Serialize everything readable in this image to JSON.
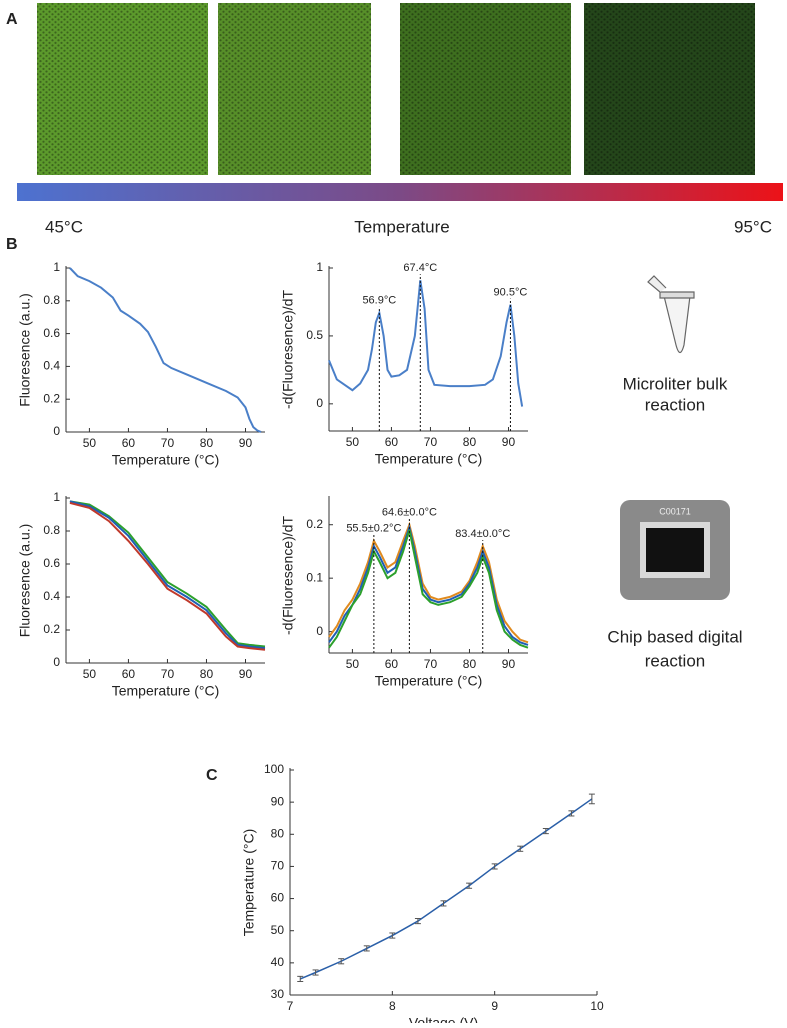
{
  "panel_labels": [
    "A",
    "B",
    "C"
  ],
  "panel_a": {
    "scale_min": "45°C",
    "scale_label": "Temperature",
    "scale_max": "95°C"
  },
  "side_captions": {
    "bulk": [
      "Microliter bulk",
      "reaction"
    ],
    "chip": [
      "Chip based digital",
      "reaction"
    ],
    "chip_label": "C00171"
  },
  "chart_data": [
    {
      "type": "line",
      "xlabel": "Temperature (°C)",
      "ylabel": "Fluoresence (a.u.)",
      "xlim": [
        44,
        95
      ],
      "ylim": [
        0,
        1
      ],
      "xticks": [
        50,
        60,
        70,
        80,
        90
      ],
      "yticks": [
        0,
        0.2,
        0.4,
        0.6,
        0.8,
        1
      ],
      "x": [
        45,
        47,
        50,
        53,
        56,
        58,
        60,
        63,
        65,
        67,
        69,
        71,
        75,
        80,
        85,
        88,
        90,
        91,
        92,
        93,
        94
      ],
      "series": [
        {
          "color": "#4a7fc8",
          "values": [
            1.0,
            0.95,
            0.92,
            0.88,
            0.82,
            0.74,
            0.71,
            0.66,
            0.61,
            0.52,
            0.42,
            0.39,
            0.35,
            0.3,
            0.25,
            0.21,
            0.15,
            0.08,
            0.03,
            0.01,
            0.0
          ]
        }
      ]
    },
    {
      "type": "line",
      "xlabel": "Temperature (°C)",
      "ylabel": "-d(Fluoresence)/dT",
      "xlim": [
        44,
        95
      ],
      "ylim": [
        -0.2,
        1
      ],
      "xticks": [
        50,
        60,
        70,
        80,
        90
      ],
      "yticks": [
        0,
        0.5,
        1
      ],
      "x": [
        44,
        46,
        48,
        50,
        52,
        54,
        55,
        56,
        56.9,
        58,
        59,
        60,
        62,
        64,
        66,
        67.4,
        68.5,
        69.5,
        71,
        75,
        80,
        84,
        86,
        88,
        89.5,
        90.5,
        91.5,
        92.5,
        93.5
      ],
      "series": [
        {
          "color": "#4a7fc8",
          "values": [
            0.32,
            0.18,
            0.14,
            0.1,
            0.15,
            0.25,
            0.4,
            0.6,
            0.67,
            0.5,
            0.25,
            0.2,
            0.21,
            0.25,
            0.5,
            0.91,
            0.7,
            0.25,
            0.14,
            0.13,
            0.13,
            0.14,
            0.18,
            0.35,
            0.6,
            0.73,
            0.5,
            0.15,
            -0.02
          ]
        }
      ],
      "annotations": [
        {
          "x": 56.9,
          "label": "56.9°C"
        },
        {
          "x": 67.4,
          "label": "67.4°C"
        },
        {
          "x": 90.5,
          "label": "90.5°C"
        }
      ]
    },
    {
      "type": "line",
      "xlabel": "Temperature (°C)",
      "ylabel": "Fluoresence (a.u.)",
      "xlim": [
        44,
        95
      ],
      "ylim": [
        0,
        1
      ],
      "xticks": [
        50,
        60,
        70,
        80,
        90
      ],
      "yticks": [
        0,
        0.2,
        0.4,
        0.6,
        0.8,
        1
      ],
      "x": [
        45,
        50,
        55,
        60,
        65,
        70,
        75,
        80,
        85,
        88,
        91,
        95
      ],
      "series": [
        {
          "color": "#2ca02c",
          "values": [
            0.98,
            0.96,
            0.89,
            0.79,
            0.64,
            0.49,
            0.42,
            0.34,
            0.2,
            0.12,
            0.11,
            0.1
          ]
        },
        {
          "color": "#1f5fb4",
          "values": [
            0.98,
            0.95,
            0.88,
            0.77,
            0.62,
            0.47,
            0.4,
            0.32,
            0.18,
            0.11,
            0.1,
            0.09
          ]
        },
        {
          "color": "#c0392b",
          "values": [
            0.97,
            0.94,
            0.86,
            0.74,
            0.6,
            0.45,
            0.38,
            0.3,
            0.16,
            0.1,
            0.09,
            0.08
          ]
        }
      ]
    },
    {
      "type": "line",
      "xlabel": "Temperature (°C)",
      "ylabel": "-d(Fluoresence)/dT",
      "xlim": [
        44,
        95
      ],
      "ylim": [
        -0.04,
        0.25
      ],
      "xticks": [
        50,
        60,
        70,
        80,
        90
      ],
      "yticks": [
        0,
        0.1,
        0.2
      ],
      "x": [
        44,
        46,
        48,
        50,
        52,
        54,
        55.5,
        57,
        59,
        61,
        63,
        64.6,
        66,
        68,
        70,
        72,
        75,
        78,
        80,
        82,
        83.4,
        85,
        87,
        89,
        91,
        93,
        95
      ],
      "series": [
        {
          "color": "#e08a1e",
          "values": [
            -0.01,
            0.01,
            0.04,
            0.06,
            0.09,
            0.13,
            0.17,
            0.15,
            0.12,
            0.13,
            0.17,
            0.2,
            0.16,
            0.09,
            0.065,
            0.06,
            0.065,
            0.075,
            0.095,
            0.13,
            0.16,
            0.13,
            0.06,
            0.02,
            0.0,
            -0.015,
            -0.02
          ]
        },
        {
          "color": "#1f5fb4",
          "values": [
            -0.02,
            0.0,
            0.03,
            0.05,
            0.08,
            0.12,
            0.16,
            0.14,
            0.11,
            0.12,
            0.16,
            0.195,
            0.15,
            0.08,
            0.06,
            0.055,
            0.06,
            0.07,
            0.09,
            0.12,
            0.15,
            0.12,
            0.05,
            0.01,
            -0.01,
            -0.02,
            -0.025
          ]
        },
        {
          "color": "#2ca02c",
          "values": [
            -0.03,
            -0.01,
            0.02,
            0.05,
            0.07,
            0.11,
            0.15,
            0.13,
            0.1,
            0.11,
            0.15,
            0.19,
            0.14,
            0.07,
            0.055,
            0.05,
            0.055,
            0.065,
            0.085,
            0.11,
            0.14,
            0.11,
            0.04,
            0.0,
            -0.015,
            -0.025,
            -0.03
          ]
        }
      ],
      "annotations": [
        {
          "x": 55.5,
          "label": "55.5±0.2°C"
        },
        {
          "x": 64.6,
          "label": "64.6±0.0°C"
        },
        {
          "x": 83.4,
          "label": "83.4±0.0°C"
        }
      ]
    },
    {
      "type": "errorbar",
      "xlabel": "Voltage (V)",
      "ylabel": "Temperature (°C)",
      "xlim": [
        7,
        10
      ],
      "ylim": [
        30,
        100
      ],
      "xticks": [
        7,
        8,
        9,
        10
      ],
      "yticks": [
        30,
        40,
        50,
        60,
        70,
        80,
        90,
        100
      ],
      "x": [
        7.1,
        7.25,
        7.5,
        7.75,
        8.0,
        8.25,
        8.5,
        8.75,
        9.0,
        9.25,
        9.5,
        9.75,
        9.95
      ],
      "series": [
        {
          "color": "#2a5fa8",
          "values": [
            35,
            37,
            40.5,
            44.5,
            48.5,
            53,
            58.5,
            64,
            70,
            75.5,
            81,
            86.5,
            91
          ],
          "errors": [
            0.8,
            0.8,
            0.8,
            0.8,
            0.8,
            0.8,
            0.8,
            0.8,
            0.8,
            0.8,
            0.8,
            0.8,
            1.5
          ]
        }
      ]
    }
  ]
}
